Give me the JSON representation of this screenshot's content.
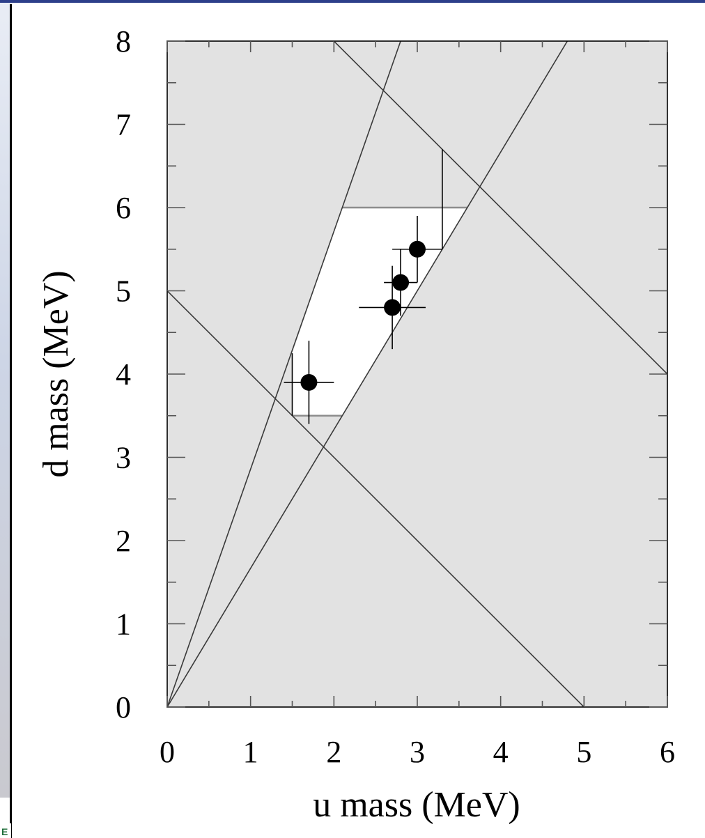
{
  "chart_data": {
    "type": "scatter",
    "title": "",
    "xlabel": "u mass (MeV)",
    "ylabel": "d mass (MeV)",
    "xlim": [
      0,
      6
    ],
    "ylim": [
      0,
      8
    ],
    "xticks": [
      "0",
      "1",
      "2",
      "3",
      "4",
      "5",
      "6"
    ],
    "yticks": [
      "0",
      "1",
      "2",
      "3",
      "4",
      "5",
      "6",
      "7",
      "8"
    ],
    "grid": false,
    "background_color": "#e2e2e2",
    "allowed_region_color": "#ffffff",
    "allowed_region": [
      [
        1.5,
        3.5
      ],
      [
        2.1,
        3.5
      ],
      [
        3.6,
        6.0
      ],
      [
        2.1,
        6.0
      ],
      [
        1.5,
        4.25
      ]
    ],
    "constraint_lines": [
      {
        "from": [
          0,
          0
        ],
        "to": [
          2.8,
          8
        ]
      },
      {
        "from": [
          0,
          0
        ],
        "to": [
          4.8,
          8
        ]
      },
      {
        "from": [
          0,
          5
        ],
        "to": [
          5,
          0
        ]
      },
      {
        "from": [
          2,
          8
        ],
        "to": [
          6,
          4
        ]
      }
    ],
    "error_bars": [
      {
        "x": 1.5,
        "ylo": 3.5,
        "yhi": 4.25
      },
      {
        "x": 3.3,
        "ylo": 5.5,
        "yhi": 6.7
      }
    ],
    "points": [
      {
        "x": 1.7,
        "y": 3.9,
        "xerr": 0.3,
        "yerr": 0.5
      },
      {
        "x": 2.7,
        "y": 4.8,
        "xerr": 0.4,
        "yerr": 0.5
      },
      {
        "x": 2.8,
        "y": 5.1,
        "xerr": 0.2,
        "yerr": 0.4
      },
      {
        "x": 3.0,
        "y": 5.5,
        "xerr": 0.3,
        "yerr": 0.4
      }
    ]
  }
}
